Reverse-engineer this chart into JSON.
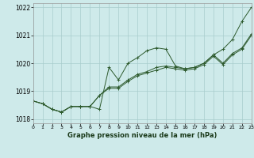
{
  "title": "Graphe pression niveau de la mer (hPa)",
  "background_color": "#ceeaea",
  "grid_color": "#a8cccc",
  "line_color": "#2d5a2d",
  "xlim": [
    0,
    23
  ],
  "ylim": [
    1017.85,
    1022.15
  ],
  "yticks": [
    1018,
    1019,
    1020,
    1021,
    1022
  ],
  "xticks": [
    0,
    1,
    2,
    3,
    4,
    5,
    6,
    7,
    8,
    9,
    10,
    11,
    12,
    13,
    14,
    15,
    16,
    17,
    18,
    19,
    20,
    21,
    22,
    23
  ],
  "series": [
    [
      1018.65,
      1018.55,
      1018.35,
      1018.25,
      1018.45,
      1018.45,
      1018.45,
      1018.35,
      1019.85,
      1019.4,
      1020.0,
      1020.2,
      1020.45,
      1020.55,
      1020.5,
      1019.9,
      1019.8,
      1019.85,
      1020.0,
      1020.3,
      1020.5,
      1020.85,
      1021.5,
      1022.0
    ],
    [
      1018.65,
      1018.55,
      1018.35,
      1018.25,
      1018.45,
      1018.45,
      1018.45,
      1018.85,
      1019.15,
      1019.15,
      1019.4,
      1019.6,
      1019.7,
      1019.85,
      1019.9,
      1019.85,
      1019.8,
      1019.85,
      1020.0,
      1020.3,
      1020.0,
      1020.35,
      1020.55,
      1021.05
    ],
    [
      1018.65,
      1018.55,
      1018.35,
      1018.25,
      1018.45,
      1018.45,
      1018.45,
      1018.85,
      1019.1,
      1019.1,
      1019.35,
      1019.55,
      1019.65,
      1019.75,
      1019.85,
      1019.8,
      1019.75,
      1019.8,
      1019.95,
      1020.25,
      1019.95,
      1020.3,
      1020.5,
      1021.0
    ]
  ]
}
